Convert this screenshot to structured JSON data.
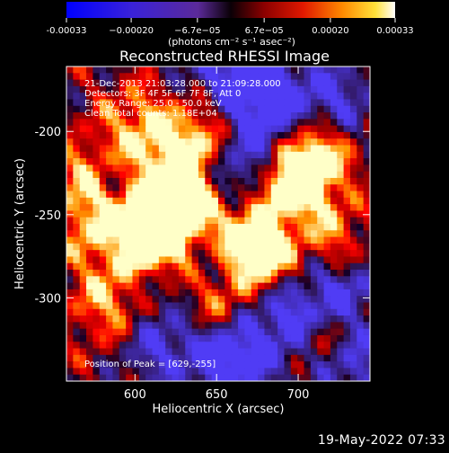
{
  "chart_data": {
    "type": "heatmap",
    "title": "Reconstructed RHESSI Image",
    "xlabel": "Heliocentric X (arcsec)",
    "ylabel": "Heliocentric Y (arcsec)",
    "xlim": [
      558,
      744
    ],
    "ylim": [
      -350,
      -161
    ],
    "x_ticks": [
      600,
      650,
      700
    ],
    "y_ticks": [
      -200,
      -250,
      -300
    ],
    "colorbar": {
      "colormap": "red-temperature with negative blue",
      "min": -0.00033,
      "max": 0.00033,
      "tick_values": [
        -0.00033,
        -0.0002,
        -6.7e-05,
        6.7e-05,
        0.0002,
        0.00033
      ],
      "tick_labels": [
        "-0.00033",
        "−0.00020",
        "−6.7e−05",
        "6.7e−05",
        "0.00020",
        "0.00033"
      ],
      "unit_label": "(photons cm⁻² s⁻¹ asec⁻²)"
    },
    "annotations": [
      "21-Dec-2013 21:03:28.000 to 21:09:28.000",
      "Detectors: 3F 4F 5F 6F 7F 8F, Att 0",
      "Energy Range: 25.0 - 50.0 keV",
      "Clean     Total counts: 1.18E+04"
    ],
    "peak_label": "Position of Peak = [629,-255]",
    "grid": false
  },
  "footer": {
    "timestamp": "19-May-2022 07:33"
  }
}
